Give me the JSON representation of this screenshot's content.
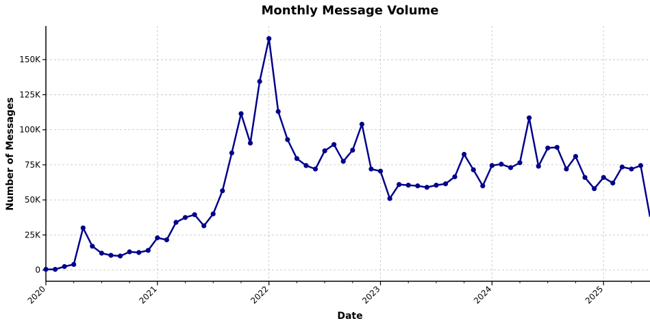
{
  "chart_data": {
    "type": "line",
    "title": "Monthly Message Volume",
    "xlabel": "Date",
    "ylabel": "Number of Messages",
    "grid": true,
    "ylim": [
      -8000,
      174000
    ],
    "xlim": [
      "2020-01",
      "2025-06"
    ],
    "y_ticks": [
      {
        "value": 0,
        "label": "0"
      },
      {
        "value": 25000,
        "label": "25K"
      },
      {
        "value": 50000,
        "label": "50K"
      },
      {
        "value": 75000,
        "label": "75K"
      },
      {
        "value": 100000,
        "label": "100K"
      },
      {
        "value": 125000,
        "label": "125K"
      },
      {
        "value": 150000,
        "label": "150K"
      }
    ],
    "x_ticks": [
      {
        "value": "2020-01",
        "label": "2020"
      },
      {
        "value": "2021-01",
        "label": "2021"
      },
      {
        "value": "2022-01",
        "label": "2022"
      },
      {
        "value": "2023-01",
        "label": "2023"
      },
      {
        "value": "2024-01",
        "label": "2024"
      },
      {
        "value": "2025-01",
        "label": "2025"
      }
    ],
    "series": [
      {
        "color": "#00008b",
        "marker": "circle",
        "x": [
          "2020-01",
          "2020-02",
          "2020-03",
          "2020-04",
          "2020-05",
          "2020-06",
          "2020-07",
          "2020-08",
          "2020-09",
          "2020-10",
          "2020-11",
          "2020-12",
          "2021-01",
          "2021-02",
          "2021-03",
          "2021-04",
          "2021-05",
          "2021-06",
          "2021-07",
          "2021-08",
          "2021-09",
          "2021-10",
          "2021-11",
          "2021-12",
          "2022-01",
          "2022-02",
          "2022-03",
          "2022-04",
          "2022-05",
          "2022-06",
          "2022-07",
          "2022-08",
          "2022-09",
          "2022-10",
          "2022-11",
          "2022-12",
          "2023-01",
          "2023-02",
          "2023-03",
          "2023-04",
          "2023-05",
          "2023-06",
          "2023-07",
          "2023-08",
          "2023-09",
          "2023-10",
          "2023-11",
          "2023-12",
          "2024-01",
          "2024-02",
          "2024-03",
          "2024-04",
          "2024-05",
          "2024-06",
          "2024-07",
          "2024-08",
          "2024-09",
          "2024-10",
          "2024-11",
          "2024-12",
          "2025-01",
          "2025-02",
          "2025-03",
          "2025-04",
          "2025-05",
          "2025-06"
        ],
        "values": [
          500,
          500,
          2500,
          4000,
          30000,
          17000,
          12000,
          10500,
          10000,
          13000,
          12500,
          14000,
          23000,
          21500,
          34000,
          37500,
          39500,
          31500,
          40000,
          56500,
          83500,
          111500,
          90500,
          134500,
          165000,
          113000,
          93000,
          79500,
          74500,
          72000,
          85000,
          89500,
          77500,
          85500,
          104000,
          72000,
          70500,
          51000,
          61000,
          60500,
          60000,
          59000,
          60500,
          61500,
          66500,
          82500,
          71500,
          60000,
          74500,
          75500,
          73000,
          76500,
          108500,
          74000,
          87000,
          87500,
          72000,
          81000,
          66000,
          58000,
          66000,
          62000,
          73500,
          72000,
          74500,
          38000
        ]
      }
    ]
  }
}
